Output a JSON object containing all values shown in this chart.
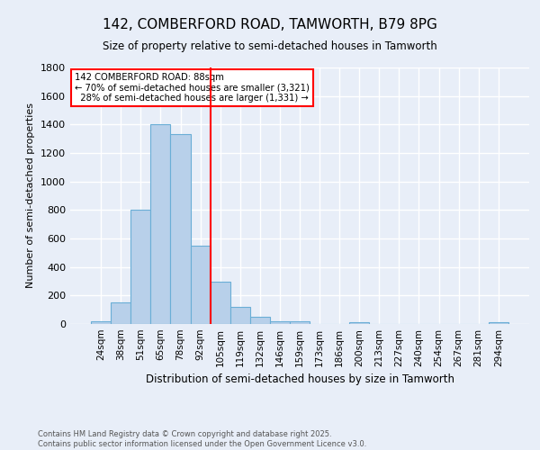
{
  "title1": "142, COMBERFORD ROAD, TAMWORTH, B79 8PG",
  "title2": "Size of property relative to semi-detached houses in Tamworth",
  "xlabel": "Distribution of semi-detached houses by size in Tamworth",
  "ylabel": "Number of semi-detached properties",
  "footer1": "Contains HM Land Registry data © Crown copyright and database right 2025.",
  "footer2": "Contains public sector information licensed under the Open Government Licence v3.0.",
  "categories": [
    "24sqm",
    "38sqm",
    "51sqm",
    "65sqm",
    "78sqm",
    "92sqm",
    "105sqm",
    "119sqm",
    "132sqm",
    "146sqm",
    "159sqm",
    "173sqm",
    "186sqm",
    "200sqm",
    "213sqm",
    "227sqm",
    "240sqm",
    "254sqm",
    "267sqm",
    "281sqm",
    "294sqm"
  ],
  "values": [
    20,
    150,
    800,
    1400,
    1330,
    550,
    300,
    120,
    50,
    20,
    20,
    0,
    0,
    15,
    0,
    0,
    0,
    0,
    0,
    0,
    15
  ],
  "bar_color": "#b8d0ea",
  "bar_edge_color": "#6aaed6",
  "red_line_x": 5.5,
  "pct_smaller": 70,
  "n_smaller": 3321,
  "pct_larger": 28,
  "n_larger": 1331,
  "annotation_label": "142 COMBERFORD ROAD: 88sqm",
  "ylim": [
    0,
    1800
  ],
  "background_color": "#e8eef8",
  "grid_color": "#ffffff"
}
